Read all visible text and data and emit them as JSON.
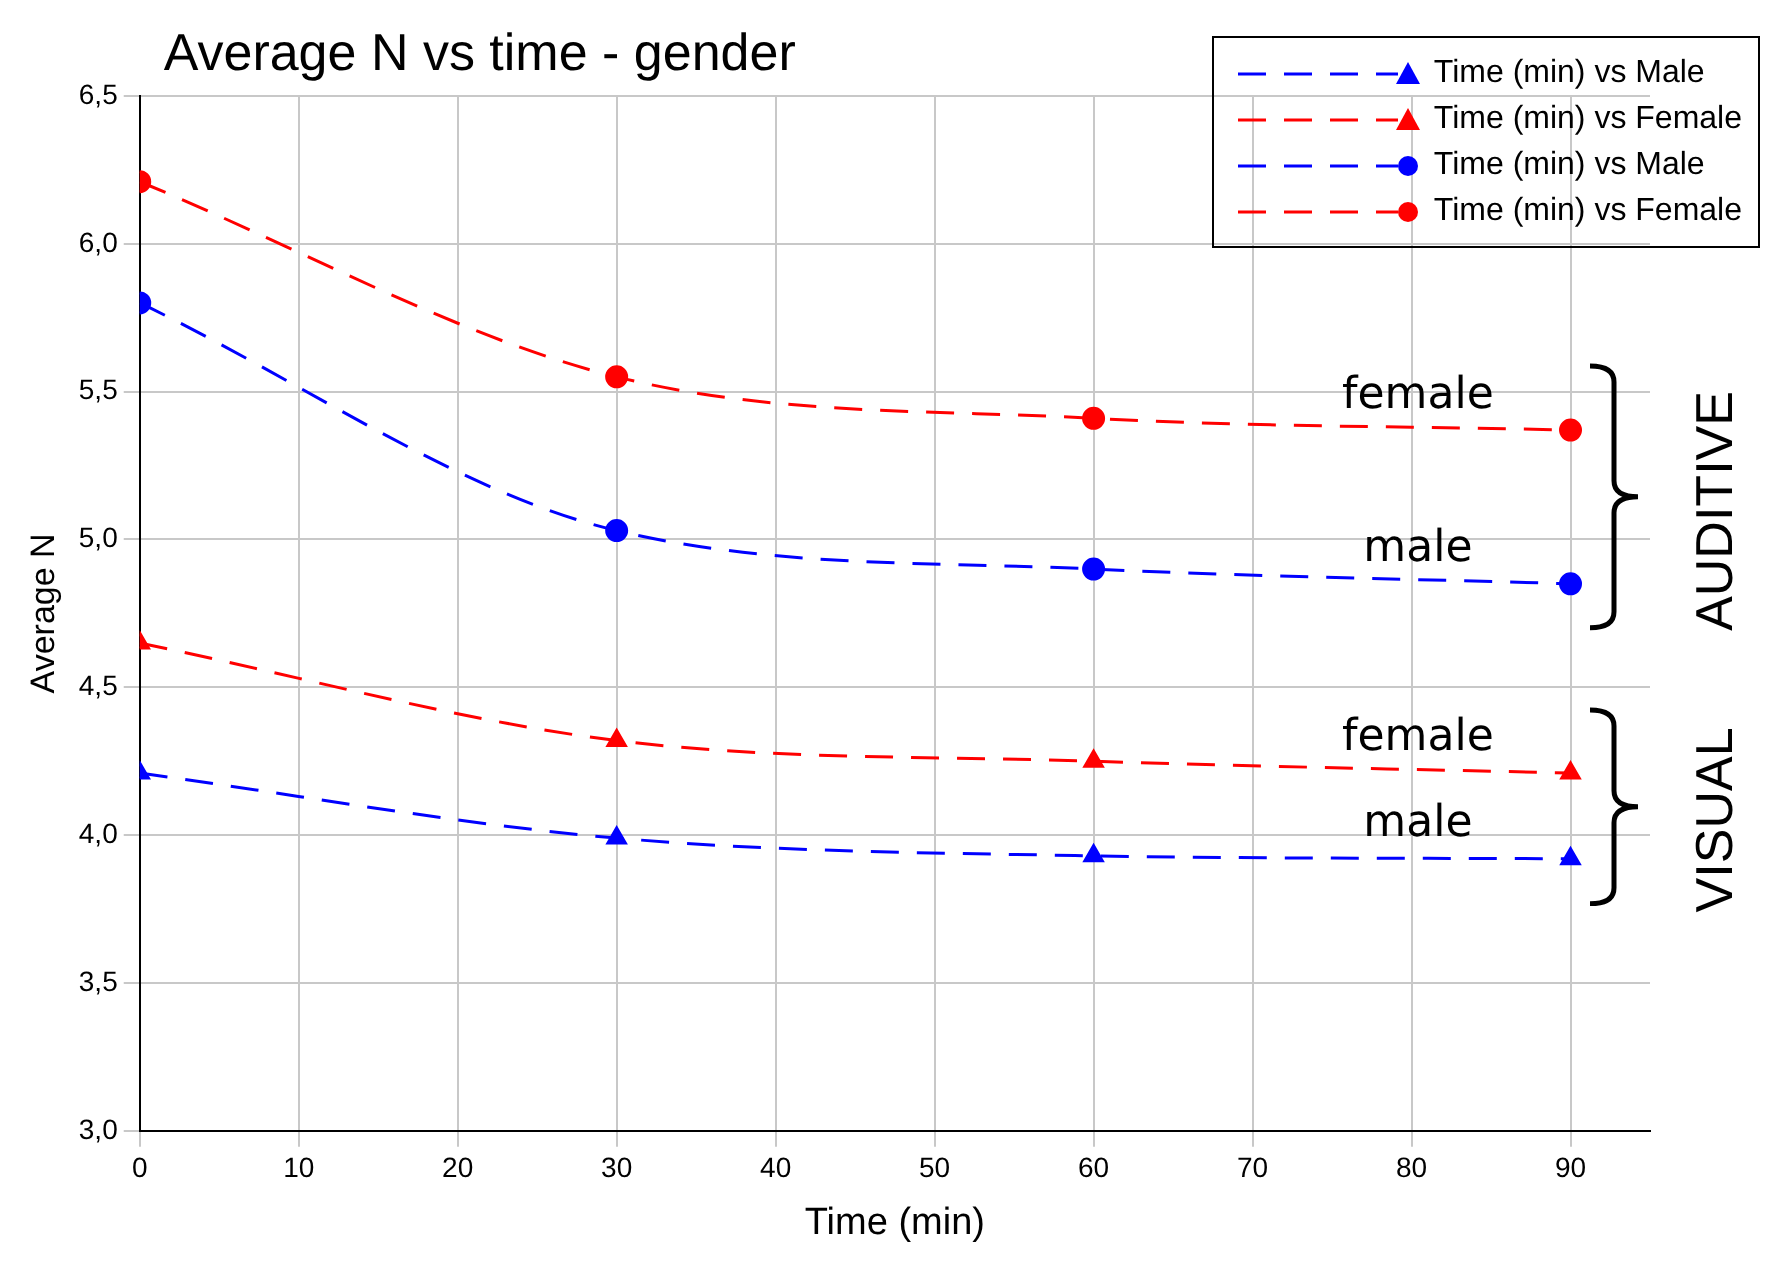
{
  "chart_data": {
    "type": "line",
    "title": "Average N vs time - gender",
    "xlabel": "Time (min)",
    "ylabel": "Average N",
    "x": [
      0,
      30,
      60,
      90
    ],
    "series": [
      {
        "name": "Time (min) vs Male",
        "color": "#0000ff",
        "marker": "triangle",
        "values": [
          4.21,
          3.99,
          3.93,
          3.92
        ]
      },
      {
        "name": "Time (min) vs Female",
        "color": "#ff0000",
        "marker": "triangle",
        "values": [
          4.65,
          4.32,
          4.25,
          4.21
        ]
      },
      {
        "name": "Time (min) vs Male",
        "color": "#0000ff",
        "marker": "circle",
        "values": [
          5.8,
          5.03,
          4.9,
          4.85
        ]
      },
      {
        "name": "Time (min) vs Female",
        "color": "#ff0000",
        "marker": "circle",
        "values": [
          6.21,
          5.55,
          5.41,
          5.37
        ]
      }
    ],
    "xlim": [
      0,
      95
    ],
    "xticks": [
      0,
      10,
      20,
      30,
      40,
      50,
      60,
      70,
      80,
      90
    ],
    "ylim": [
      3,
      6.5
    ],
    "yticks": [
      {
        "value": 3,
        "label": "3,0"
      },
      {
        "value": 3.5,
        "label": "3,5"
      },
      {
        "value": 4,
        "label": "4,0"
      },
      {
        "value": 4.5,
        "label": "4,5"
      },
      {
        "value": 5,
        "label": "5,0"
      },
      {
        "value": 5.5,
        "label": "5,5"
      },
      {
        "value": 6,
        "label": "6,0"
      },
      {
        "value": 6.5,
        "label": "6,5"
      }
    ],
    "grid": true,
    "legend": "top right",
    "line_style": "dashed",
    "annotations": [
      "female",
      "male",
      "female",
      "male",
      "AUDITIVE",
      "VISUAL"
    ]
  }
}
